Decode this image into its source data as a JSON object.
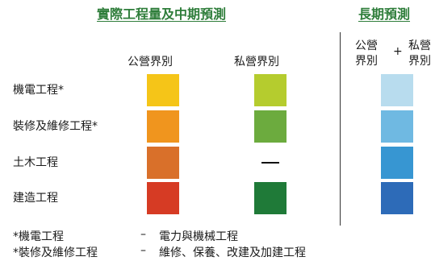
{
  "headings": {
    "current": "實際工程量及中期預測",
    "long": "長期預測"
  },
  "columns": {
    "public": "公營界別",
    "private": "私營界別",
    "lt_public_1": "公營",
    "lt_public_2": "界別",
    "lt_plus": "+",
    "lt_private_1": "私營",
    "lt_private_2": "界別"
  },
  "rows": [
    {
      "label": "機電工程*",
      "public": "#f5c518",
      "private": "#b5cc2e",
      "long": "#b8dcee"
    },
    {
      "label": "裝修及維修工程*",
      "public": "#f0951e",
      "private": "#6cab3e",
      "long": "#6fb9e2"
    },
    {
      "label": "土木工程",
      "public": "#d9702a",
      "private": "—",
      "long": "#3796d2"
    },
    {
      "label": "建造工程",
      "public": "#d63b24",
      "private": "#1f7a38",
      "long": "#2d6bb8"
    }
  ],
  "footnotes": [
    {
      "term": "*機電工程",
      "sep": "–",
      "desc": "電力與機械工程"
    },
    {
      "term": "*裝修及維修工程",
      "sep": "–",
      "desc": "維修、保養、改建及加建工程"
    }
  ]
}
